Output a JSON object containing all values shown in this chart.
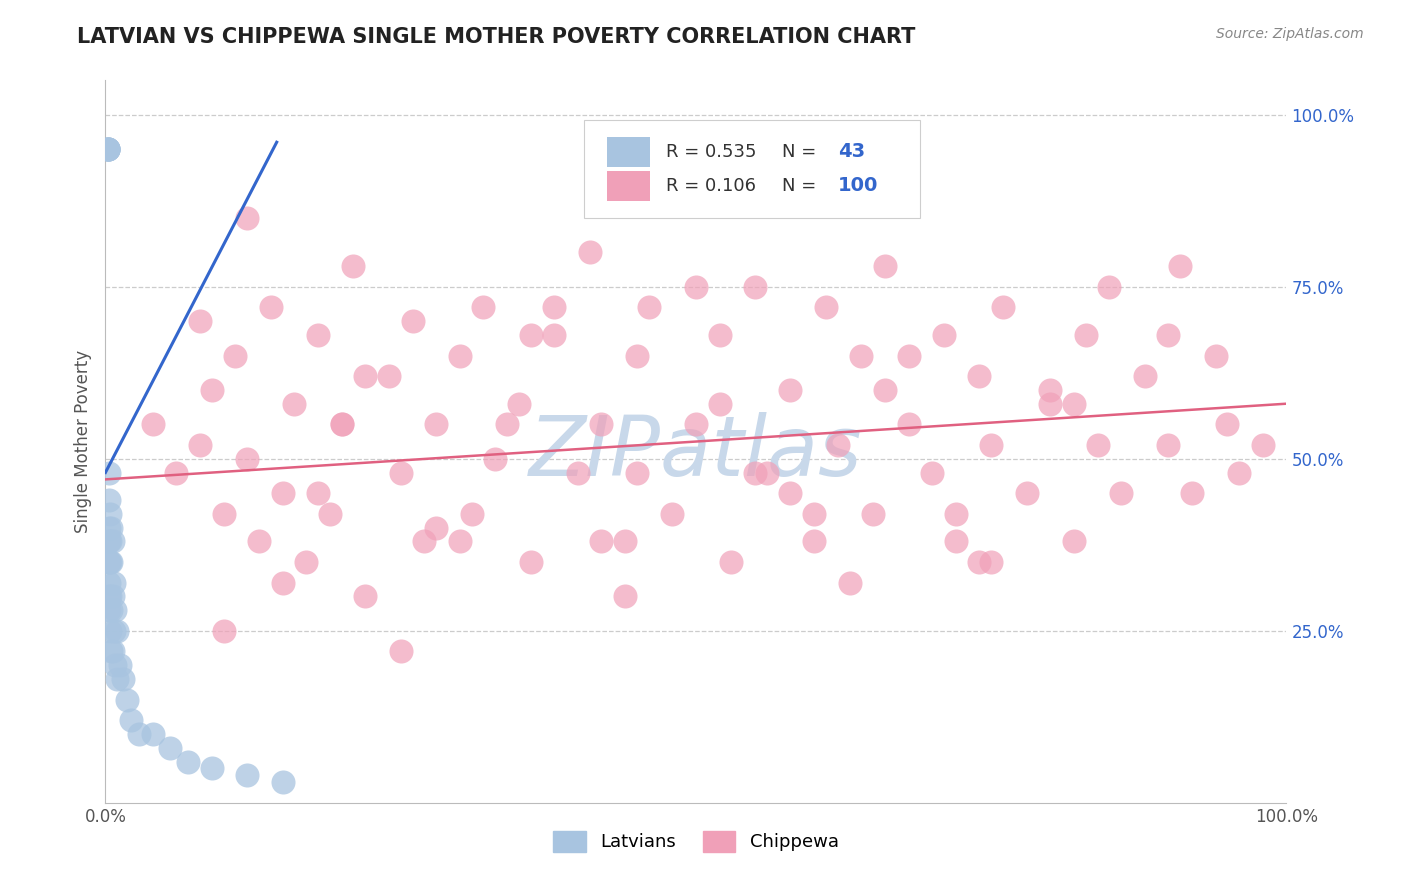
{
  "title": "LATVIAN VS CHIPPEWA SINGLE MOTHER POVERTY CORRELATION CHART",
  "source_text": "Source: ZipAtlas.com",
  "ylabel": "Single Mother Poverty",
  "xlim": [
    0.0,
    1.0
  ],
  "ylim": [
    0.0,
    1.05
  ],
  "latvian_R": 0.535,
  "latvian_N": 43,
  "chippewa_R": 0.106,
  "chippewa_N": 100,
  "latvian_color": "#a8c4e0",
  "chippewa_color": "#f0a0b8",
  "latvian_line_color": "#3366cc",
  "chippewa_line_color": "#e06080",
  "background_color": "#ffffff",
  "grid_color": "#cccccc",
  "watermark_color": "#c8d8ea",
  "legend_text_color": "#333333",
  "legend_N_color": "#3366cc",
  "right_tick_color": "#3366cc",
  "source_color": "#888888",
  "title_color": "#222222",
  "latvian_x": [
    0.002,
    0.002,
    0.002,
    0.002,
    0.002,
    0.002,
    0.003,
    0.003,
    0.003,
    0.003,
    0.003,
    0.003,
    0.003,
    0.003,
    0.004,
    0.004,
    0.004,
    0.004,
    0.004,
    0.005,
    0.005,
    0.005,
    0.005,
    0.006,
    0.006,
    0.006,
    0.007,
    0.007,
    0.008,
    0.008,
    0.01,
    0.01,
    0.012,
    0.015,
    0.018,
    0.022,
    0.028,
    0.04,
    0.055,
    0.07,
    0.09,
    0.12,
    0.15
  ],
  "latvian_y": [
    0.95,
    0.95,
    0.95,
    0.95,
    0.95,
    0.95,
    0.48,
    0.44,
    0.4,
    0.38,
    0.35,
    0.32,
    0.3,
    0.28,
    0.42,
    0.38,
    0.35,
    0.3,
    0.25,
    0.4,
    0.35,
    0.28,
    0.22,
    0.38,
    0.3,
    0.22,
    0.32,
    0.25,
    0.28,
    0.2,
    0.25,
    0.18,
    0.2,
    0.18,
    0.15,
    0.12,
    0.1,
    0.1,
    0.08,
    0.06,
    0.05,
    0.04,
    0.03
  ],
  "chippewa_x": [
    0.04,
    0.06,
    0.08,
    0.09,
    0.1,
    0.11,
    0.12,
    0.13,
    0.14,
    0.15,
    0.16,
    0.17,
    0.18,
    0.19,
    0.2,
    0.21,
    0.22,
    0.24,
    0.25,
    0.26,
    0.27,
    0.28,
    0.3,
    0.31,
    0.32,
    0.33,
    0.35,
    0.36,
    0.38,
    0.4,
    0.41,
    0.42,
    0.44,
    0.45,
    0.46,
    0.48,
    0.5,
    0.52,
    0.53,
    0.55,
    0.56,
    0.58,
    0.6,
    0.61,
    0.62,
    0.64,
    0.65,
    0.66,
    0.68,
    0.7,
    0.71,
    0.72,
    0.74,
    0.75,
    0.76,
    0.78,
    0.8,
    0.82,
    0.83,
    0.84,
    0.85,
    0.86,
    0.88,
    0.9,
    0.91,
    0.92,
    0.94,
    0.95,
    0.96,
    0.98,
    0.08,
    0.15,
    0.22,
    0.3,
    0.38,
    0.45,
    0.52,
    0.6,
    0.68,
    0.75,
    0.12,
    0.2,
    0.28,
    0.36,
    0.44,
    0.5,
    0.58,
    0.66,
    0.74,
    0.82,
    0.1,
    0.18,
    0.25,
    0.34,
    0.42,
    0.55,
    0.63,
    0.72,
    0.8,
    0.9
  ],
  "chippewa_y": [
    0.55,
    0.48,
    0.52,
    0.6,
    0.42,
    0.65,
    0.5,
    0.38,
    0.72,
    0.45,
    0.58,
    0.35,
    0.68,
    0.42,
    0.55,
    0.78,
    0.3,
    0.62,
    0.48,
    0.7,
    0.38,
    0.55,
    0.65,
    0.42,
    0.72,
    0.5,
    0.58,
    0.35,
    0.68,
    0.48,
    0.8,
    0.55,
    0.38,
    0.65,
    0.72,
    0.42,
    0.55,
    0.68,
    0.35,
    0.75,
    0.48,
    0.6,
    0.38,
    0.72,
    0.52,
    0.65,
    0.42,
    0.78,
    0.55,
    0.48,
    0.68,
    0.38,
    0.62,
    0.52,
    0.72,
    0.45,
    0.58,
    0.38,
    0.68,
    0.52,
    0.75,
    0.45,
    0.62,
    0.52,
    0.78,
    0.45,
    0.65,
    0.55,
    0.48,
    0.52,
    0.7,
    0.32,
    0.62,
    0.38,
    0.72,
    0.48,
    0.58,
    0.42,
    0.65,
    0.35,
    0.85,
    0.55,
    0.4,
    0.68,
    0.3,
    0.75,
    0.45,
    0.6,
    0.35,
    0.58,
    0.25,
    0.45,
    0.22,
    0.55,
    0.38,
    0.48,
    0.32,
    0.42,
    0.6,
    0.68
  ],
  "latvian_line_x": [
    0.0,
    0.145
  ],
  "latvian_line_y": [
    0.48,
    0.96
  ],
  "chippewa_line_x": [
    0.0,
    1.0
  ],
  "chippewa_line_y": [
    0.47,
    0.58
  ]
}
